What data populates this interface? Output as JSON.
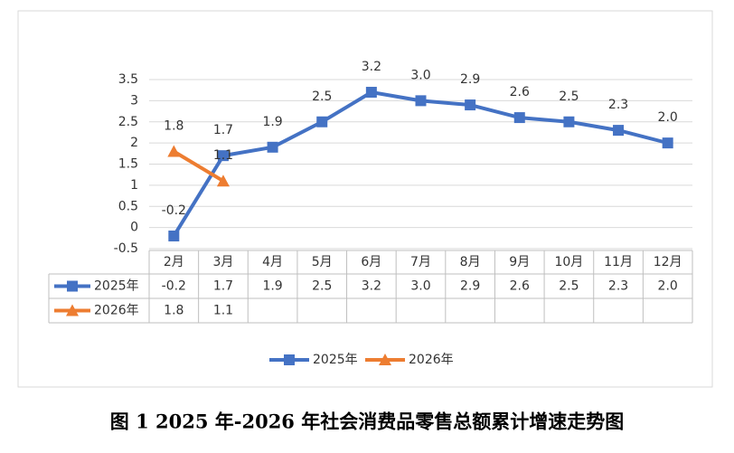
{
  "chart_data": {
    "type": "line",
    "title": "图 1 2025 年-2026 年社会消费品零售总额累计增速走势图",
    "categories": [
      "2月",
      "3月",
      "4月",
      "5月",
      "6月",
      "7月",
      "8月",
      "9月",
      "10月",
      "11月",
      "12月"
    ],
    "series": [
      {
        "name": "2025年",
        "color": "#4472c4",
        "marker": "square",
        "values": [
          -0.2,
          1.7,
          1.9,
          2.5,
          3.2,
          3,
          2.9,
          2.6,
          2.5,
          2.3,
          2
        ],
        "value_labels": [
          "-0.2",
          "1.7",
          "1.9",
          "2.5",
          "3.2",
          "3.0",
          "2.9",
          "2.6",
          "2.5",
          "2.3",
          "2.0"
        ]
      },
      {
        "name": "2026年",
        "color": "#ed7d31",
        "marker": "triangle",
        "values": [
          1.8,
          1.1,
          null,
          null,
          null,
          null,
          null,
          null,
          null,
          null,
          null
        ],
        "value_labels": [
          "1.8",
          "1.1",
          null,
          null,
          null,
          null,
          null,
          null,
          null,
          null,
          null
        ]
      }
    ],
    "ylim": [
      -0.5,
      3.5
    ],
    "yticks": [
      -0.5,
      0,
      0.5,
      1,
      1.5,
      2,
      2.5,
      3,
      3.5
    ],
    "grid": true,
    "legend": "bottom"
  }
}
